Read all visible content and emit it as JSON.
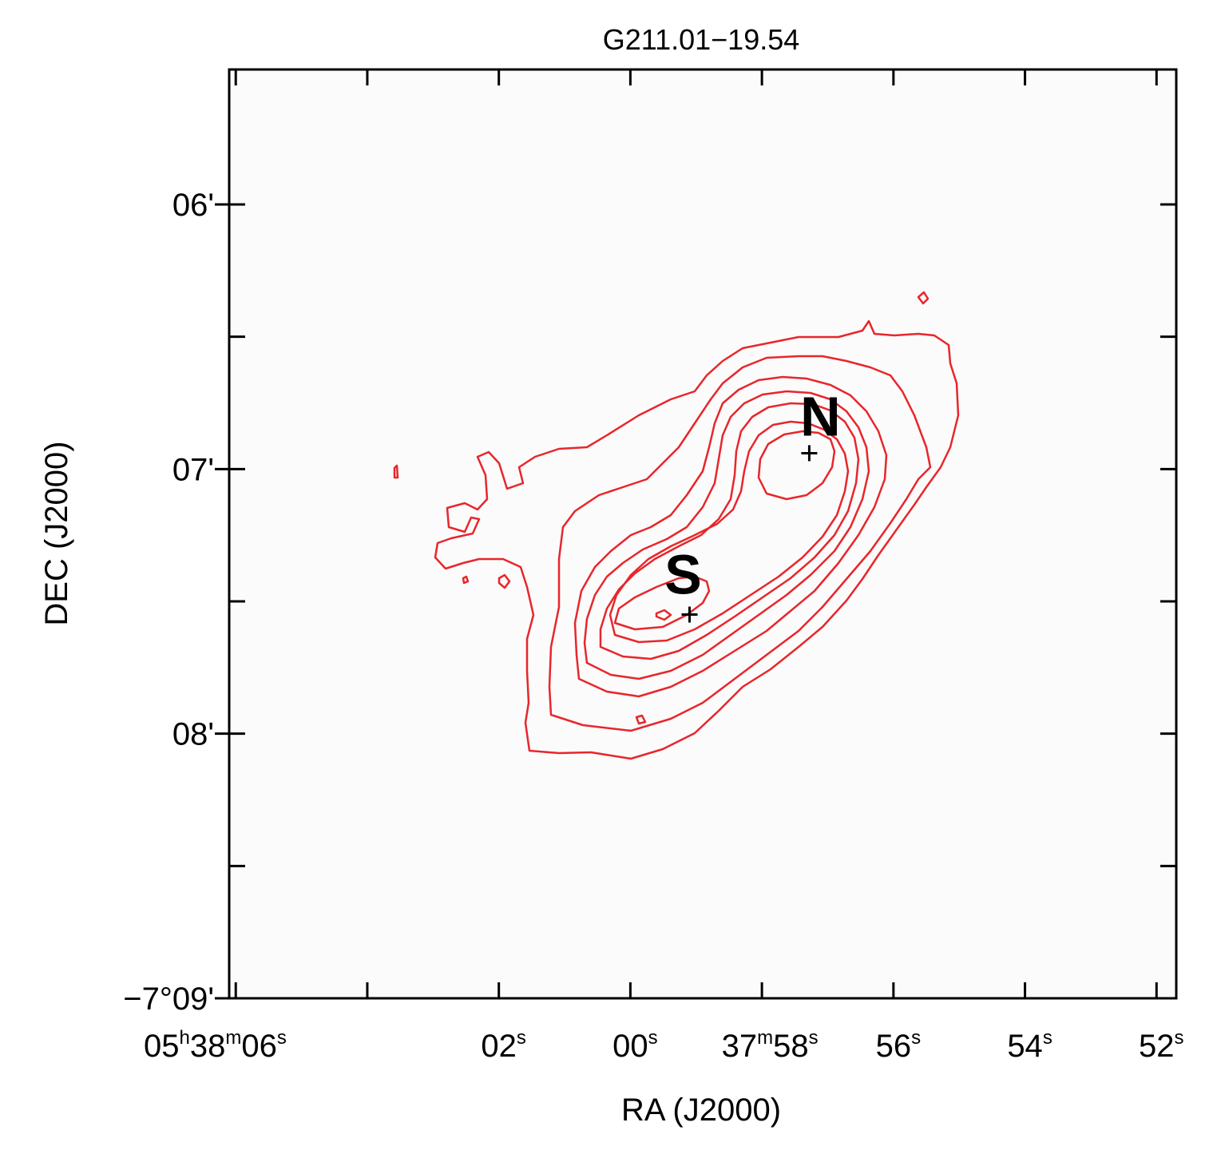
{
  "chart_data": {
    "type": "contour",
    "title": "G211.01−19.54",
    "xlabel": "RA (J2000)",
    "ylabel": "DEC (J2000)",
    "x_ticks": [
      {
        "sec": 6,
        "label": "06",
        "prefix_h": "05",
        "h": "h",
        "prefix_m": "38",
        "m": "m",
        "s": "s"
      },
      {
        "sec": 2,
        "label": "02",
        "s": "s"
      },
      {
        "sec": 0,
        "label": "00",
        "s": "s"
      },
      {
        "sec": -2,
        "label": "58",
        "prefix_m": "37",
        "m": "m",
        "s": "s"
      },
      {
        "sec": -4,
        "label": "56",
        "s": "s"
      },
      {
        "sec": -6,
        "label": "54",
        "s": "s"
      },
      {
        "sec": -8,
        "label": "52",
        "s": "s"
      }
    ],
    "x_minor_ticks_sec": [
      4
    ],
    "y_ticks": [
      {
        "arcmin": 6,
        "label": "06'"
      },
      {
        "arcmin": 7,
        "label": "07'"
      },
      {
        "arcmin": 8,
        "label": "08'"
      },
      {
        "arcmin": 9,
        "label": "−7°09'"
      }
    ],
    "y_minor_ticks_arcmin": [
      6.5,
      7.5,
      8.5
    ],
    "xlim_sec": [
      6.1,
      -8.3
    ],
    "ylim_arcmin": [
      5.49,
      9.0
    ],
    "contour_color": "#e8262b",
    "sources": [
      {
        "name": "N",
        "ra_sec": -2.72,
        "dec_arcmin": 6.94
      },
      {
        "name": "S",
        "ra_sec": -0.9,
        "dec_arcmin": 7.55
      }
    ]
  }
}
